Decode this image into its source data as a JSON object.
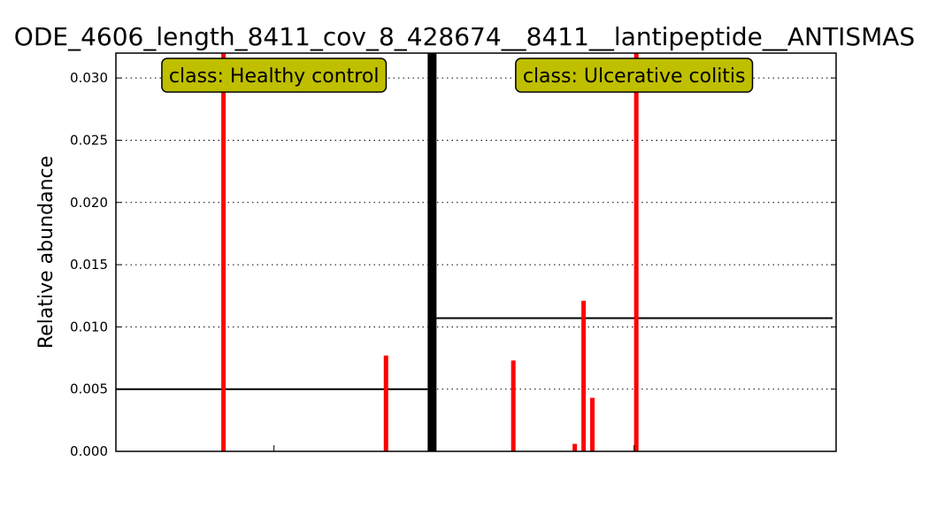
{
  "chart_data": {
    "type": "bar",
    "title": "ODE_4606_length_8411_cov_8_428674__8411__lantipeptide__ANTISMAS",
    "xlabel": "",
    "ylabel": "Relative abundance",
    "ylim": [
      0,
      0.032
    ],
    "yticks": [
      "0.000",
      "0.005",
      "0.010",
      "0.015",
      "0.020",
      "0.025",
      "0.030"
    ],
    "grid": true,
    "bar_color": "#ff0000",
    "mean_line_color": "#000000",
    "class_box_color": "#bfbf00",
    "classes": [
      {
        "label": "class: Healthy control",
        "mean": 0.005,
        "values": [
          0,
          0,
          0,
          0,
          0,
          0,
          0,
          0,
          0,
          0,
          0,
          0,
          0,
          0,
          0,
          0,
          0,
          0,
          0,
          0,
          0,
          0,
          0,
          0,
          0.0325,
          0,
          0,
          0,
          0,
          0,
          0,
          0,
          0,
          0,
          0,
          0,
          0,
          0,
          0,
          0,
          0,
          0,
          0,
          0,
          0,
          0,
          0,
          0,
          0,
          0,
          0,
          0,
          0,
          0,
          0,
          0,
          0,
          0,
          0,
          0,
          0,
          0.0077,
          0,
          0,
          0,
          0,
          0,
          0,
          0,
          0,
          0,
          0
        ]
      },
      {
        "label": "class: Ulcerative colitis",
        "mean": 0.0107,
        "values": [
          0,
          0,
          0,
          0,
          0,
          0,
          0,
          0,
          0,
          0,
          0,
          0,
          0,
          0,
          0,
          0,
          0,
          0,
          0.0073,
          0,
          0,
          0,
          0,
          0,
          0,
          0,
          0,
          0,
          0,
          0,
          0,
          0,
          0.0006,
          0,
          0.0121,
          0,
          0.0043,
          0,
          0,
          0,
          0,
          0,
          0,
          0,
          0,
          0,
          0.0325,
          0,
          0,
          0,
          0,
          0,
          0,
          0,
          0,
          0,
          0,
          0,
          0,
          0,
          0,
          0,
          0,
          0,
          0,
          0,
          0,
          0,
          0,
          0,
          0,
          0,
          0,
          0,
          0,
          0,
          0,
          0,
          0,
          0,
          0,
          0,
          0,
          0,
          0,
          0,
          0,
          0,
          0,
          0,
          0,
          0
        ]
      }
    ]
  }
}
